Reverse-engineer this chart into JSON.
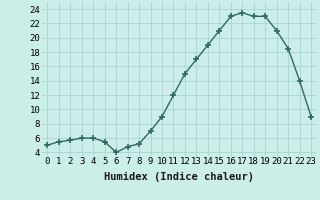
{
  "x": [
    0,
    1,
    2,
    3,
    4,
    5,
    6,
    7,
    8,
    9,
    10,
    11,
    12,
    13,
    14,
    15,
    16,
    17,
    18,
    19,
    20,
    21,
    22,
    23
  ],
  "y": [
    5.0,
    5.5,
    5.7,
    6.0,
    6.0,
    5.5,
    4.0,
    4.8,
    5.2,
    7.0,
    9.0,
    12.0,
    15.0,
    17.0,
    19.0,
    21.0,
    23.0,
    23.5,
    23.0,
    23.0,
    21.0,
    18.5,
    14.0,
    9.0
  ],
  "line_color": "#2e6b5e",
  "marker": "+",
  "marker_size": 4,
  "bg_color": "#cceee8",
  "grid_color": "#aad4ce",
  "xlabel": "Humidex (Indice chaleur)",
  "ylabel_ticks": [
    4,
    6,
    8,
    10,
    12,
    14,
    16,
    18,
    20,
    22,
    24
  ],
  "xtick_labels": [
    "0",
    "1",
    "2",
    "3",
    "4",
    "5",
    "6",
    "7",
    "8",
    "9",
    "10",
    "11",
    "12",
    "13",
    "14",
    "15",
    "16",
    "17",
    "18",
    "19",
    "20",
    "21",
    "22",
    "23"
  ],
  "ylim": [
    3.5,
    25.0
  ],
  "xlim": [
    -0.5,
    23.5
  ],
  "xlabel_fontsize": 7.5,
  "tick_fontsize": 6.5,
  "line_width": 1.0,
  "marker_linewidth": 1.2
}
